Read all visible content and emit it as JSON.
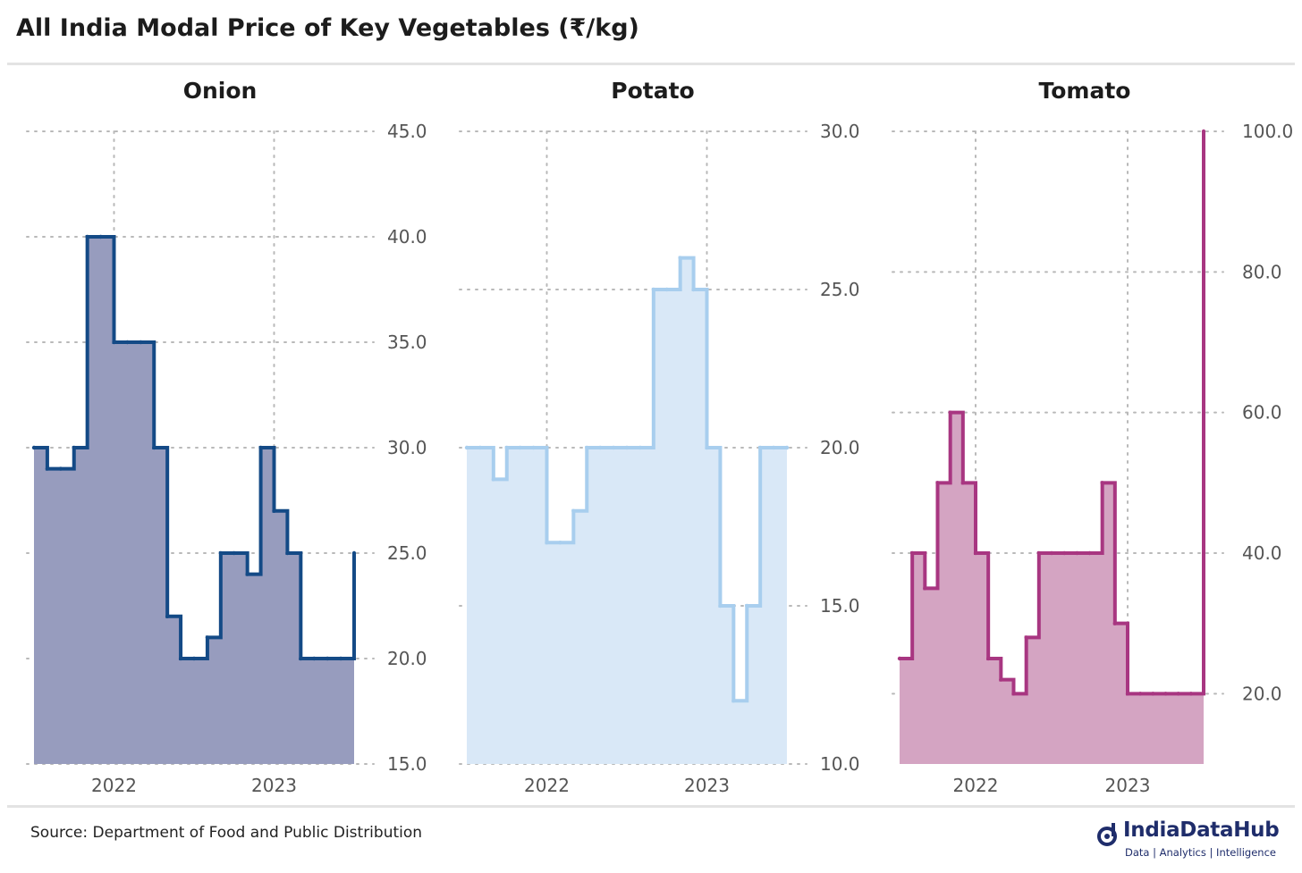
{
  "title": "All India Modal Price of Key Vegetables (₹/kg)",
  "source": "Source: Department of Food and Public Distribution",
  "logo": {
    "name": "IndiaDataHub",
    "tagline": "Data | Analytics | Intelligence",
    "color": "#1f2d6b"
  },
  "chart_data": [
    {
      "type": "area",
      "title": "Onion",
      "line_color": "#144a86",
      "fill_color": "#979cbe",
      "x_ticks": [
        "2022",
        "2023"
      ],
      "ylim": [
        15,
        45
      ],
      "y_ticks": [
        "15.0",
        "20.0",
        "25.0",
        "30.0",
        "35.0",
        "40.0",
        "45.0"
      ],
      "y_axis_position": "right",
      "grid": true,
      "x_start": "2021-07",
      "x_end": "2023-07",
      "x": [
        "2021-07",
        "2021-08",
        "2021-09",
        "2021-10",
        "2021-11",
        "2021-12",
        "2022-01",
        "2022-02",
        "2022-03",
        "2022-04",
        "2022-05",
        "2022-06",
        "2022-07",
        "2022-08",
        "2022-09",
        "2022-10",
        "2022-11",
        "2022-12",
        "2023-01",
        "2023-02",
        "2023-03",
        "2023-04",
        "2023-05",
        "2023-06",
        "2023-07"
      ],
      "values": [
        30,
        29,
        29,
        30,
        40,
        40,
        35,
        35,
        35,
        30,
        22,
        20,
        20,
        21,
        25,
        25,
        24,
        30,
        27,
        25,
        20,
        20,
        20,
        20,
        25
      ]
    },
    {
      "type": "area",
      "title": "Potato",
      "line_color": "#a8ceee",
      "fill_color": "#d9e8f7",
      "x_ticks": [
        "2022",
        "2023"
      ],
      "ylim": [
        10,
        30
      ],
      "y_ticks": [
        "10.0",
        "15.0",
        "20.0",
        "25.0",
        "30.0"
      ],
      "y_axis_position": "right",
      "grid": true,
      "x_start": "2021-07",
      "x_end": "2023-07",
      "x": [
        "2021-07",
        "2021-08",
        "2021-09",
        "2021-10",
        "2021-11",
        "2021-12",
        "2022-01",
        "2022-02",
        "2022-03",
        "2022-04",
        "2022-05",
        "2022-06",
        "2022-07",
        "2022-08",
        "2022-09",
        "2022-10",
        "2022-11",
        "2022-12",
        "2023-01",
        "2023-02",
        "2023-03",
        "2023-04",
        "2023-05",
        "2023-06",
        "2023-07"
      ],
      "values": [
        20,
        20,
        19,
        20,
        20,
        20,
        17,
        17,
        18,
        20,
        20,
        20,
        20,
        20,
        25,
        25,
        26,
        25,
        20,
        15,
        12,
        15,
        20,
        20,
        20
      ]
    },
    {
      "type": "area",
      "title": "Tomato",
      "line_color": "#a83681",
      "fill_color": "#d4a4c2",
      "x_ticks": [
        "2022",
        "2023"
      ],
      "ylim": [
        10,
        100
      ],
      "y_ticks": [
        "20.0",
        "40.0",
        "60.0",
        "80.0",
        "100.0"
      ],
      "y_axis_position": "right",
      "grid": true,
      "x_start": "2021-07",
      "x_end": "2023-07",
      "x": [
        "2021-07",
        "2021-08",
        "2021-09",
        "2021-10",
        "2021-11",
        "2021-12",
        "2022-01",
        "2022-02",
        "2022-03",
        "2022-04",
        "2022-05",
        "2022-06",
        "2022-07",
        "2022-08",
        "2022-09",
        "2022-10",
        "2022-11",
        "2022-12",
        "2023-01",
        "2023-02",
        "2023-03",
        "2023-04",
        "2023-05",
        "2023-06",
        "2023-07"
      ],
      "values": [
        25,
        40,
        35,
        50,
        60,
        50,
        40,
        25,
        22,
        20,
        28,
        40,
        40,
        40,
        40,
        40,
        50,
        30,
        20,
        20,
        20,
        20,
        20,
        20,
        100
      ]
    }
  ]
}
